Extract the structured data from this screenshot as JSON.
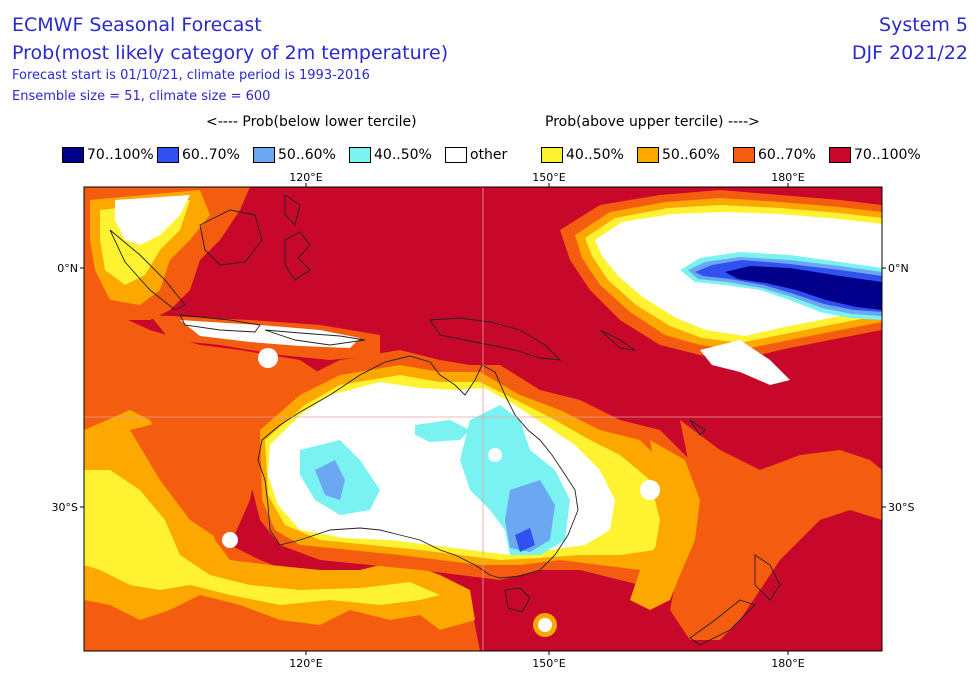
{
  "header": {
    "title": "ECMWF Seasonal Forecast",
    "subtitle": "Prob(most likely category of 2m temperature)",
    "forecast_info": "Forecast start is 01/10/21, climate period is 1993-2016",
    "ensemble_info": "Ensemble size = 51, climate size = 600",
    "system": "System 5",
    "season": "DJF 2021/22"
  },
  "legend": {
    "below_header": "<---- Prob(below lower tercile)",
    "above_header": "Prob(above upper tercile) ---->",
    "items": [
      {
        "label": "70..100%",
        "color": "#00008b"
      },
      {
        "label": "60..70%",
        "color": "#3050f0"
      },
      {
        "label": "50..60%",
        "color": "#6ca8f2"
      },
      {
        "label": "40..50%",
        "color": "#7af2f2"
      },
      {
        "label": "other",
        "color": "#ffffff"
      },
      {
        "label": "40..50%",
        "color": "#fff230"
      },
      {
        "label": "50..60%",
        "color": "#fca800"
      },
      {
        "label": "60..70%",
        "color": "#f45c10"
      },
      {
        "label": "70..100%",
        "color": "#c8082a"
      }
    ]
  },
  "map": {
    "lon_labels": [
      "120°E",
      "150°E",
      "180°E"
    ],
    "lat_labels": [
      "0°N",
      "30°S"
    ]
  }
}
